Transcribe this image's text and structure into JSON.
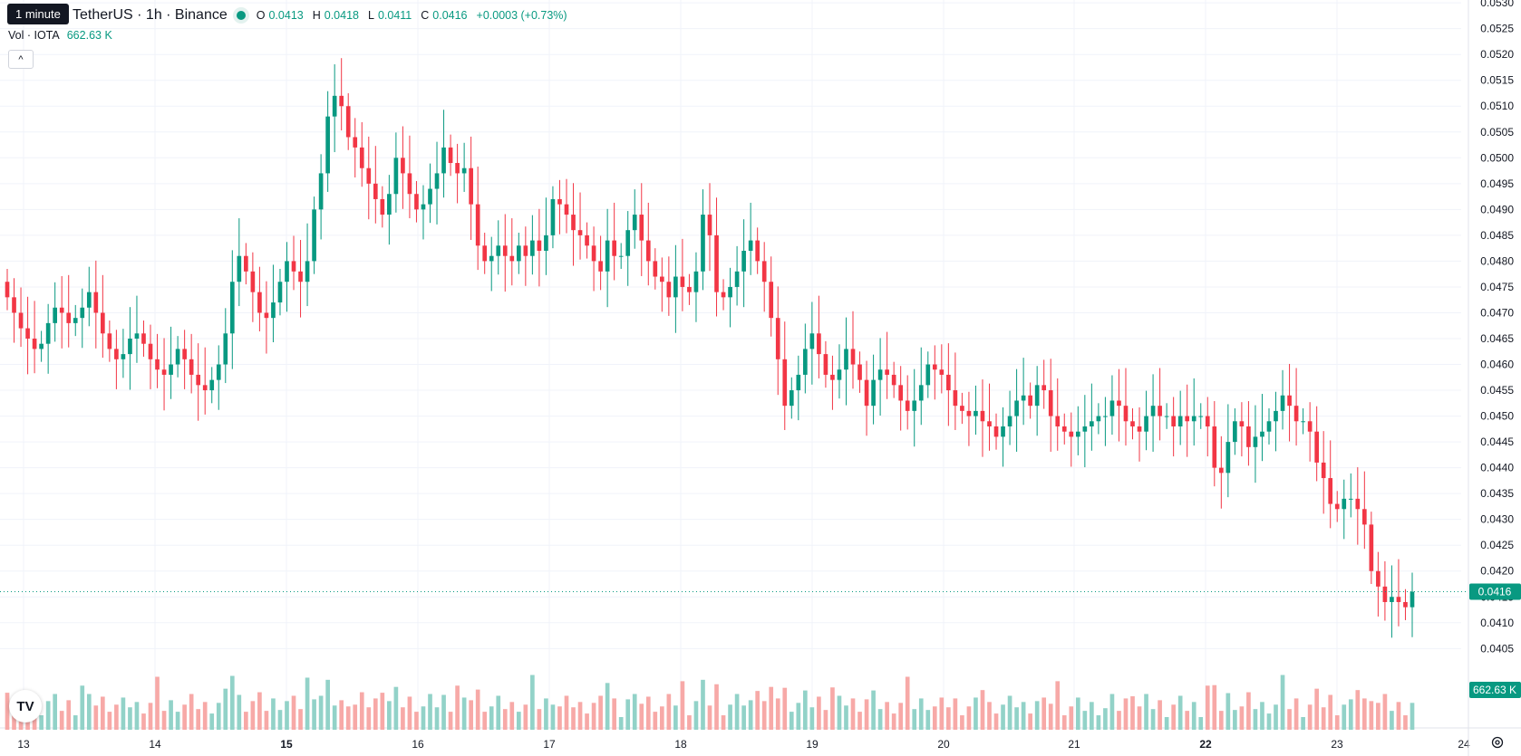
{
  "header": {
    "tooltip": "1 minute",
    "symbol": "TetherUS · 1h · Binance",
    "ohlc": {
      "o_label": "O",
      "o": "0.0413",
      "h_label": "H",
      "h": "0.0418",
      "l_label": "L",
      "l": "0.0411",
      "c_label": "C",
      "c": "0.0416",
      "change": "+0.0003 (+0.73%)"
    },
    "volume_label": "Vol · IOTA",
    "volume_value": "662.63 K",
    "collapse_icon": "^"
  },
  "colors": {
    "up": "#089981",
    "down": "#f23645",
    "vol_up": "#92d2c8",
    "vol_down": "#f7a9a7",
    "grid": "#f0f3fa",
    "axis_text": "#131722"
  },
  "chart_data": {
    "type": "candlestick",
    "price_axis": {
      "ticks": [
        "0.0530",
        "0.0525",
        "0.0520",
        "0.0515",
        "0.0510",
        "0.0505",
        "0.0500",
        "0.0495",
        "0.0490",
        "0.0485",
        "0.0480",
        "0.0475",
        "0.0470",
        "0.0465",
        "0.0460",
        "0.0455",
        "0.0450",
        "0.0445",
        "0.0440",
        "0.0435",
        "0.0430",
        "0.0425",
        "0.0420",
        "0.0415",
        "0.0410",
        "0.0405"
      ],
      "range": [
        0.04012,
        0.05302
      ]
    },
    "time_axis": {
      "ticks": [
        "13",
        "14",
        "15",
        "16",
        "17",
        "18",
        "19",
        "20",
        "21",
        "22",
        "23",
        "24"
      ],
      "bold_ticks": [
        "15",
        "22"
      ]
    },
    "current_price_label": "0.0416",
    "current_volume_label": "662.63 K",
    "series_close": [
      0.0473,
      0.047,
      0.0467,
      0.0465,
      0.0463,
      0.0464,
      0.0468,
      0.0471,
      0.047,
      0.0468,
      0.0469,
      0.0471,
      0.0474,
      0.047,
      0.0466,
      0.0463,
      0.0461,
      0.0462,
      0.0465,
      0.0466,
      0.0464,
      0.0461,
      0.0459,
      0.0458,
      0.046,
      0.0463,
      0.0461,
      0.0458,
      0.0456,
      0.0455,
      0.0457,
      0.046,
      0.0466,
      0.0476,
      0.0481,
      0.0478,
      0.0474,
      0.047,
      0.0469,
      0.0472,
      0.0476,
      0.048,
      0.0478,
      0.0476,
      0.048,
      0.049,
      0.0497,
      0.0508,
      0.0512,
      0.051,
      0.0504,
      0.0502,
      0.0498,
      0.0495,
      0.0492,
      0.0489,
      0.0493,
      0.05,
      0.0497,
      0.0493,
      0.049,
      0.0491,
      0.0494,
      0.0497,
      0.0502,
      0.0499,
      0.0497,
      0.0498,
      0.0491,
      0.0483,
      0.048,
      0.0481,
      0.0483,
      0.0481,
      0.048,
      0.0483,
      0.0481,
      0.0484,
      0.0482,
      0.0485,
      0.0492,
      0.0491,
      0.0489,
      0.0486,
      0.0485,
      0.0483,
      0.048,
      0.0478,
      0.0484,
      0.0481,
      0.0481,
      0.0486,
      0.0489,
      0.0484,
      0.048,
      0.0477,
      0.0476,
      0.0473,
      0.0477,
      0.0475,
      0.0474,
      0.0478,
      0.0489,
      0.0485,
      0.0474,
      0.0473,
      0.0475,
      0.0478,
      0.0482,
      0.0484,
      0.048,
      0.0476,
      0.0469,
      0.0461,
      0.0452,
      0.0455,
      0.0458,
      0.0463,
      0.0466,
      0.0462,
      0.0458,
      0.0457,
      0.0459,
      0.0463,
      0.046,
      0.0457,
      0.0452,
      0.0457,
      0.0459,
      0.0458,
      0.0456,
      0.0453,
      0.0451,
      0.0453,
      0.0456,
      0.046,
      0.0459,
      0.0458,
      0.0455,
      0.0452,
      0.0451,
      0.045,
      0.0451,
      0.0449,
      0.0448,
      0.0446,
      0.0448,
      0.045,
      0.0453,
      0.0454,
      0.0452,
      0.0456,
      0.0455,
      0.045,
      0.0448,
      0.0447,
      0.0446,
      0.0447,
      0.0448,
      0.0449,
      0.045,
      0.045,
      0.0453,
      0.0452,
      0.0449,
      0.0448,
      0.0447,
      0.045,
      0.0452,
      0.045,
      0.045,
      0.0448,
      0.045,
      0.0449,
      0.045,
      0.045,
      0.0448,
      0.044,
      0.0439,
      0.0445,
      0.0449,
      0.0448,
      0.0444,
      0.0446,
      0.0447,
      0.0449,
      0.0451,
      0.0454,
      0.0452,
      0.0449,
      0.0449,
      0.0447,
      0.0441,
      0.0438,
      0.0433,
      0.0432,
      0.0434,
      0.0434,
      0.0432,
      0.0429,
      0.042,
      0.0417,
      0.0414,
      0.0415,
      0.0414,
      0.0413,
      0.0416
    ]
  }
}
